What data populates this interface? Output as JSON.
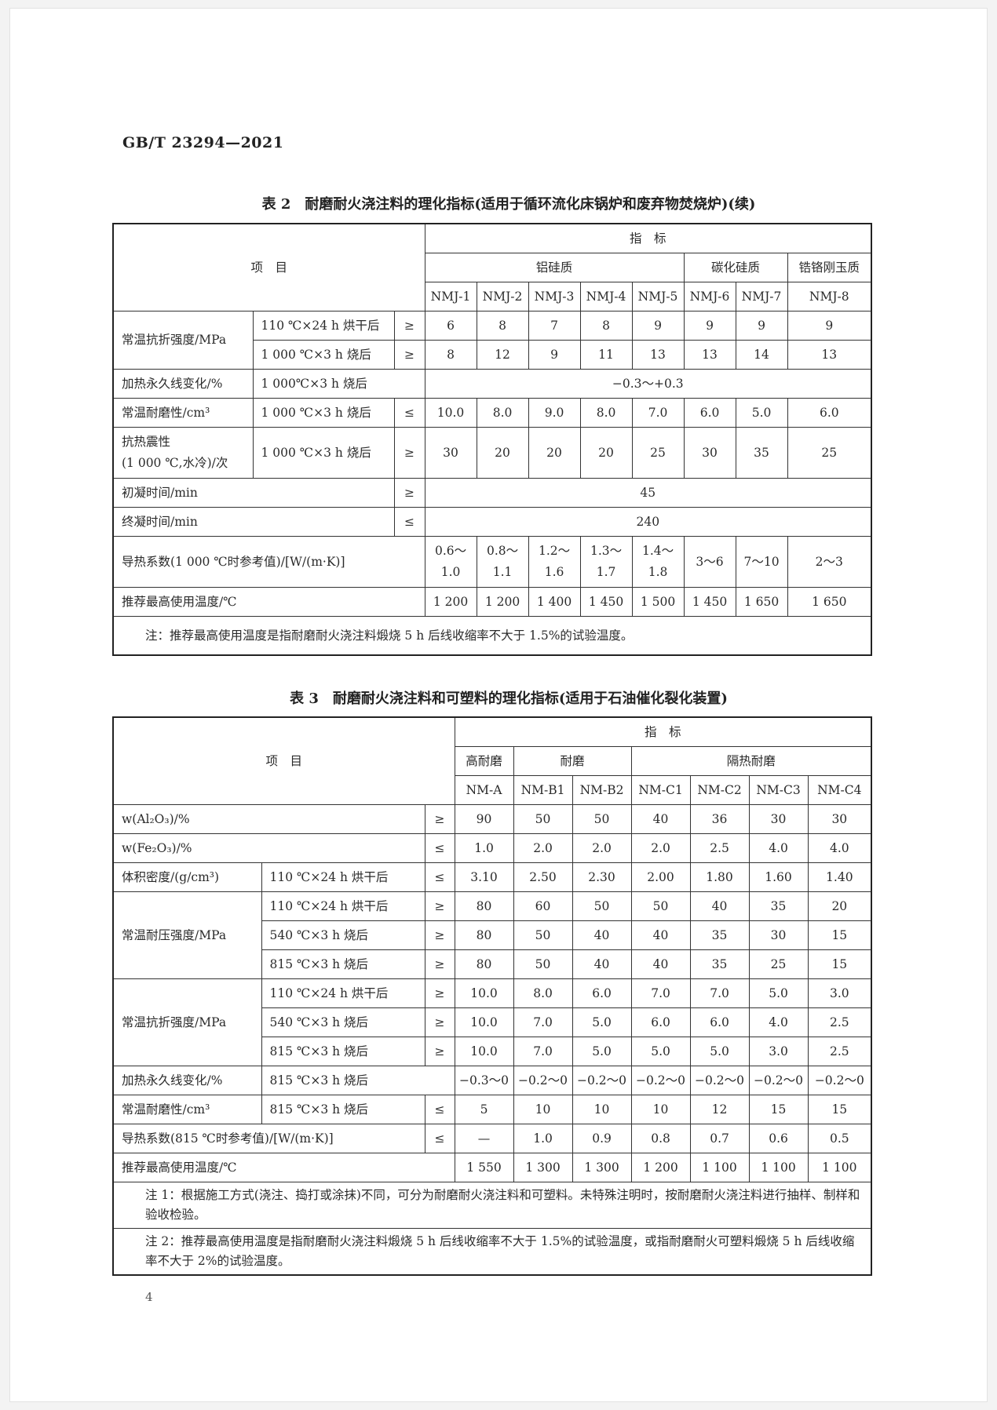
{
  "header": {
    "standard_no": "GB/T 23294—2021",
    "page_number": "4"
  },
  "table2": {
    "title": "表 2　耐磨耐火浇注料的理化指标(适用于循环流化床锅炉和废弃物焚烧炉)(续)",
    "rows": [
      [
        {
          "t": "项　目",
          "cs": 3,
          "rs": 3
        },
        {
          "t": "指　标",
          "cs": 8
        }
      ],
      [
        {
          "t": "铝硅质",
          "cs": 5
        },
        {
          "t": "碳化硅质",
          "cs": 2
        },
        {
          "t": "锆铬刚玉质"
        }
      ],
      [
        {
          "t": "NMJ-1"
        },
        {
          "t": "NMJ-2"
        },
        {
          "t": "NMJ-3"
        },
        {
          "t": "NMJ-4"
        },
        {
          "t": "NMJ-5"
        },
        {
          "t": "NMJ-6"
        },
        {
          "t": "NMJ-7"
        },
        {
          "t": "NMJ-8"
        }
      ],
      [
        {
          "t": "常温抗折强度/MPa",
          "rs": 2
        },
        {
          "t": "110 ℃×24 h 烘干后"
        },
        {
          "t": "≥"
        },
        {
          "t": "6"
        },
        {
          "t": "8"
        },
        {
          "t": "7"
        },
        {
          "t": "8"
        },
        {
          "t": "9"
        },
        {
          "t": "9"
        },
        {
          "t": "9"
        },
        {
          "t": "9"
        }
      ],
      [
        {
          "t": "1 000 ℃×3 h 烧后"
        },
        {
          "t": "≥"
        },
        {
          "t": "8"
        },
        {
          "t": "12"
        },
        {
          "t": "9"
        },
        {
          "t": "11"
        },
        {
          "t": "13"
        },
        {
          "t": "13"
        },
        {
          "t": "14"
        },
        {
          "t": "13"
        }
      ],
      [
        {
          "t": "加热永久线变化/%"
        },
        {
          "t": "1 000℃×3 h 烧后",
          "cs": 2
        },
        {
          "t": "−0.3～+0.3",
          "cs": 8
        }
      ],
      [
        {
          "t": "常温耐磨性/cm³"
        },
        {
          "t": "1 000 ℃×3 h 烧后"
        },
        {
          "t": "≤"
        },
        {
          "t": "10.0"
        },
        {
          "t": "8.0"
        },
        {
          "t": "9.0"
        },
        {
          "t": "8.0"
        },
        {
          "t": "7.0"
        },
        {
          "t": "6.0"
        },
        {
          "t": "5.0"
        },
        {
          "t": "6.0"
        }
      ],
      [
        {
          "t": "抗热震性\n(1 000 ℃,水冷)/次"
        },
        {
          "t": "1 000 ℃×3 h 烧后"
        },
        {
          "t": "≥"
        },
        {
          "t": "30"
        },
        {
          "t": "20"
        },
        {
          "t": "20"
        },
        {
          "t": "20"
        },
        {
          "t": "25"
        },
        {
          "t": "30"
        },
        {
          "t": "35"
        },
        {
          "t": "25"
        }
      ],
      [
        {
          "t": "初凝时间/min",
          "cs": 2
        },
        {
          "t": "≥"
        },
        {
          "t": "45",
          "cs": 8
        }
      ],
      [
        {
          "t": "终凝时间/min",
          "cs": 2
        },
        {
          "t": "≤"
        },
        {
          "t": "240",
          "cs": 8
        }
      ],
      [
        {
          "t": "导热系数(1 000 ℃时参考值)/[W/(m·K)]",
          "cs": 3
        },
        {
          "t": "0.6～\n1.0"
        },
        {
          "t": "0.8～\n1.1"
        },
        {
          "t": "1.2～\n1.6"
        },
        {
          "t": "1.3～\n1.7"
        },
        {
          "t": "1.4～\n1.8"
        },
        {
          "t": "3～6"
        },
        {
          "t": "7～10"
        },
        {
          "t": "2～3"
        }
      ],
      [
        {
          "t": "推荐最高使用温度/℃",
          "cs": 3
        },
        {
          "t": "1 200"
        },
        {
          "t": "1 200"
        },
        {
          "t": "1 400"
        },
        {
          "t": "1 450"
        },
        {
          "t": "1 500"
        },
        {
          "t": "1 450"
        },
        {
          "t": "1 650"
        },
        {
          "t": "1 650"
        }
      ]
    ],
    "note": "注：推荐最高使用温度是指耐磨耐火浇注料煅烧 5 h 后线收缩率不大于 1.5%的试验温度。"
  },
  "table3": {
    "title": "表 3　耐磨耐火浇注料和可塑料的理化指标(适用于石油催化裂化装置)",
    "rows": [
      [
        {
          "t": "项　目",
          "cs": 3,
          "rs": 3
        },
        {
          "t": "指　标",
          "cs": 7
        }
      ],
      [
        {
          "t": "高耐磨"
        },
        {
          "t": "耐磨",
          "cs": 2
        },
        {
          "t": "隔热耐磨",
          "cs": 4
        }
      ],
      [
        {
          "t": "NM-A"
        },
        {
          "t": "NM-B1"
        },
        {
          "t": "NM-B2"
        },
        {
          "t": "NM-C1"
        },
        {
          "t": "NM-C2"
        },
        {
          "t": "NM-C3"
        },
        {
          "t": "NM-C4"
        }
      ],
      [
        {
          "t": "w(Al₂O₃)/%",
          "cs": 2
        },
        {
          "t": "≥"
        },
        {
          "t": "90"
        },
        {
          "t": "50"
        },
        {
          "t": "50"
        },
        {
          "t": "40"
        },
        {
          "t": "36"
        },
        {
          "t": "30"
        },
        {
          "t": "30"
        }
      ],
      [
        {
          "t": "w(Fe₂O₃)/%",
          "cs": 2
        },
        {
          "t": "≤"
        },
        {
          "t": "1.0"
        },
        {
          "t": "2.0"
        },
        {
          "t": "2.0"
        },
        {
          "t": "2.0"
        },
        {
          "t": "2.5"
        },
        {
          "t": "4.0"
        },
        {
          "t": "4.0"
        }
      ],
      [
        {
          "t": "体积密度/(g/cm³)"
        },
        {
          "t": "110 ℃×24 h 烘干后"
        },
        {
          "t": "≤"
        },
        {
          "t": "3.10"
        },
        {
          "t": "2.50"
        },
        {
          "t": "2.30"
        },
        {
          "t": "2.00"
        },
        {
          "t": "1.80"
        },
        {
          "t": "1.60"
        },
        {
          "t": "1.40"
        }
      ],
      [
        {
          "t": "常温耐压强度/MPa",
          "rs": 3
        },
        {
          "t": "110 ℃×24 h 烘干后"
        },
        {
          "t": "≥"
        },
        {
          "t": "80"
        },
        {
          "t": "60"
        },
        {
          "t": "50"
        },
        {
          "t": "50"
        },
        {
          "t": "40"
        },
        {
          "t": "35"
        },
        {
          "t": "20"
        }
      ],
      [
        {
          "t": "540 ℃×3 h 烧后"
        },
        {
          "t": "≥"
        },
        {
          "t": "80"
        },
        {
          "t": "50"
        },
        {
          "t": "40"
        },
        {
          "t": "40"
        },
        {
          "t": "35"
        },
        {
          "t": "30"
        },
        {
          "t": "15"
        }
      ],
      [
        {
          "t": "815 ℃×3 h 烧后"
        },
        {
          "t": "≥"
        },
        {
          "t": "80"
        },
        {
          "t": "50"
        },
        {
          "t": "40"
        },
        {
          "t": "40"
        },
        {
          "t": "35"
        },
        {
          "t": "25"
        },
        {
          "t": "15"
        }
      ],
      [
        {
          "t": "常温抗折强度/MPa",
          "rs": 3
        },
        {
          "t": "110 ℃×24 h 烘干后"
        },
        {
          "t": "≥"
        },
        {
          "t": "10.0"
        },
        {
          "t": "8.0"
        },
        {
          "t": "6.0"
        },
        {
          "t": "7.0"
        },
        {
          "t": "7.0"
        },
        {
          "t": "5.0"
        },
        {
          "t": "3.0"
        }
      ],
      [
        {
          "t": "540 ℃×3 h 烧后"
        },
        {
          "t": "≥"
        },
        {
          "t": "10.0"
        },
        {
          "t": "7.0"
        },
        {
          "t": "5.0"
        },
        {
          "t": "6.0"
        },
        {
          "t": "6.0"
        },
        {
          "t": "4.0"
        },
        {
          "t": "2.5"
        }
      ],
      [
        {
          "t": "815 ℃×3 h 烧后"
        },
        {
          "t": "≥"
        },
        {
          "t": "10.0"
        },
        {
          "t": "7.0"
        },
        {
          "t": "5.0"
        },
        {
          "t": "5.0"
        },
        {
          "t": "5.0"
        },
        {
          "t": "3.0"
        },
        {
          "t": "2.5"
        }
      ],
      [
        {
          "t": "加热永久线变化/%"
        },
        {
          "t": "815 ℃×3 h 烧后",
          "cs": 2
        },
        {
          "t": "−0.3～0"
        },
        {
          "t": "−0.2～0"
        },
        {
          "t": "−0.2～0"
        },
        {
          "t": "−0.2～0"
        },
        {
          "t": "−0.2～0"
        },
        {
          "t": "−0.2～0"
        },
        {
          "t": "−0.2～0"
        }
      ],
      [
        {
          "t": "常温耐磨性/cm³"
        },
        {
          "t": "815 ℃×3 h 烧后"
        },
        {
          "t": "≤"
        },
        {
          "t": "5"
        },
        {
          "t": "10"
        },
        {
          "t": "10"
        },
        {
          "t": "10"
        },
        {
          "t": "12"
        },
        {
          "t": "15"
        },
        {
          "t": "15"
        }
      ],
      [
        {
          "t": "导热系数(815 ℃时参考值)/[W/(m·K)]",
          "cs": 2
        },
        {
          "t": "≤"
        },
        {
          "t": "—"
        },
        {
          "t": "1.0"
        },
        {
          "t": "0.9"
        },
        {
          "t": "0.8"
        },
        {
          "t": "0.7"
        },
        {
          "t": "0.6"
        },
        {
          "t": "0.5"
        }
      ],
      [
        {
          "t": "推荐最高使用温度/℃",
          "cs": 3
        },
        {
          "t": "1 550"
        },
        {
          "t": "1 300"
        },
        {
          "t": "1 300"
        },
        {
          "t": "1 200"
        },
        {
          "t": "1 100"
        },
        {
          "t": "1 100"
        },
        {
          "t": "1 100"
        }
      ]
    ],
    "notes": [
      "注 1：根据施工方式(浇注、捣打或涂抹)不同，可分为耐磨耐火浇注料和可塑料。未特殊注明时，按耐磨耐火浇注料进行抽样、制样和验收检验。",
      "注 2：推荐最高使用温度是指耐磨耐火浇注料煅烧 5 h 后线收缩率不大于 1.5%的试验温度，或指耐磨耐火可塑料煅烧 5 h 后线收缩率不大于 2%的试验温度。"
    ]
  }
}
